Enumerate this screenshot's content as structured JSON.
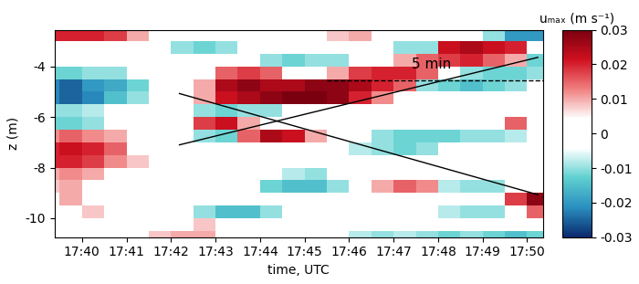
{
  "chart_data": {
    "type": "heatmap",
    "x_label": "time, UTC",
    "y_label": "z (m)",
    "xlim": [
      39.38,
      50.36
    ],
    "ylim": [
      -10.75,
      -2.55
    ],
    "xticks": [
      {
        "value": 40,
        "label": "17:40"
      },
      {
        "value": 41,
        "label": "17:41"
      },
      {
        "value": 42,
        "label": "17:42"
      },
      {
        "value": 43,
        "label": "17:43"
      },
      {
        "value": 44,
        "label": "17:44"
      },
      {
        "value": 45,
        "label": "17:45"
      },
      {
        "value": 46,
        "label": "17:46"
      },
      {
        "value": 47,
        "label": "17:47"
      },
      {
        "value": 48,
        "label": "17:48"
      },
      {
        "value": 49,
        "label": "17:49"
      },
      {
        "value": 50,
        "label": "17:50"
      }
    ],
    "yticks": [
      -10,
      -8,
      -6,
      -4
    ],
    "x_edges": [
      39.0,
      39.5,
      40.0,
      40.5,
      41.0,
      41.5,
      42.0,
      42.5,
      43.0,
      43.5,
      44.0,
      44.5,
      45.0,
      45.5,
      46.0,
      46.5,
      47.0,
      47.5,
      48.0,
      48.5,
      49.0,
      49.5,
      50.0,
      50.5
    ],
    "y_edges": [
      -11.0,
      -10.5,
      -10.0,
      -9.5,
      -9.0,
      -8.5,
      -8.0,
      -7.5,
      -7.0,
      -6.5,
      -6.0,
      -5.5,
      -5.0,
      -4.5,
      -4.0,
      -3.5,
      -3.0,
      -2.5
    ],
    "cells": [
      [
        0,
        0,
        0,
        0,
        0,
        0.008,
        0.01,
        0.01,
        0,
        0,
        0,
        0,
        0,
        0,
        -0.008,
        -0.01,
        -0.008,
        -0.01,
        -0.012,
        -0.01,
        -0.012,
        -0.015,
        -0.012
      ],
      [
        0,
        0,
        0,
        0,
        0,
        0,
        0,
        0.008,
        0,
        0,
        0,
        0,
        0,
        0,
        0,
        0,
        0,
        0,
        0,
        0,
        0,
        0,
        0
      ],
      [
        0,
        0,
        0.008,
        0,
        0,
        0,
        0,
        -0.01,
        -0.015,
        -0.015,
        -0.01,
        0,
        0,
        0,
        0,
        0,
        0,
        0,
        -0.008,
        -0.01,
        -0.01,
        0,
        0.015
      ],
      [
        0,
        0.01,
        0,
        0,
        0,
        0,
        0,
        0,
        0,
        0,
        0,
        0,
        0,
        0,
        0,
        0,
        0,
        0,
        0,
        0,
        0,
        0.018,
        0.028
      ],
      [
        0.008,
        0.01,
        0,
        0,
        0,
        0,
        0,
        0,
        0,
        0,
        -0.012,
        -0.015,
        -0.015,
        -0.01,
        0,
        0.01,
        0.015,
        0.012,
        -0.008,
        -0.01,
        -0.01,
        0,
        0
      ],
      [
        0.01,
        0.012,
        0.01,
        0,
        0,
        0,
        0,
        0,
        0,
        0,
        0,
        -0.008,
        -0.01,
        0,
        0,
        0,
        0,
        0,
        0,
        0,
        0,
        0,
        0
      ],
      [
        0.02,
        0.02,
        0.018,
        0.012,
        0.008,
        0,
        0,
        0,
        0,
        0,
        0,
        0,
        0,
        0,
        0,
        0,
        0,
        0,
        0,
        0,
        0,
        0,
        0
      ],
      [
        0.02,
        0.022,
        0.02,
        0.015,
        0,
        0,
        0,
        0,
        0,
        0,
        0,
        0,
        0,
        0,
        -0.008,
        -0.01,
        -0.012,
        -0.01,
        0,
        0,
        0,
        0,
        0
      ],
      [
        0.012,
        0.015,
        0.012,
        0.01,
        0,
        0,
        0,
        -0.01,
        -0.012,
        0.015,
        0.025,
        0.022,
        0.01,
        0,
        0,
        -0.01,
        -0.012,
        -0.012,
        -0.012,
        -0.01,
        -0.01,
        -0.008,
        0
      ],
      [
        -0.012,
        -0.012,
        -0.01,
        0,
        0,
        0,
        0,
        0.018,
        0.022,
        0.01,
        0,
        0,
        0,
        0,
        0,
        0,
        0,
        0,
        0,
        0,
        0,
        0.015,
        0
      ],
      [
        -0.01,
        -0.01,
        -0.008,
        0,
        0,
        0,
        0,
        -0.01,
        -0.012,
        -0.01,
        -0.01,
        0,
        0,
        0,
        0,
        0,
        0,
        0,
        0,
        0,
        0,
        0,
        0
      ],
      [
        -0.022,
        -0.025,
        -0.022,
        -0.015,
        -0.01,
        0,
        0,
        0.01,
        0.022,
        0.025,
        0.028,
        0.03,
        0.03,
        0.028,
        0.02,
        0.012,
        0,
        0,
        0,
        0,
        0,
        0,
        0
      ],
      [
        -0.022,
        -0.025,
        -0.02,
        -0.018,
        -0.012,
        0,
        0,
        0.01,
        0.025,
        0.028,
        0.025,
        0.025,
        0.028,
        0.028,
        0.025,
        0.02,
        0.015,
        -0.01,
        -0.012,
        -0.015,
        -0.012,
        -0.01,
        0
      ],
      [
        -0.012,
        -0.012,
        -0.01,
        -0.01,
        0,
        0,
        0,
        0,
        0.015,
        0.018,
        0.015,
        0,
        0,
        0.01,
        0.018,
        0.02,
        0.02,
        0.015,
        0,
        -0.01,
        -0.012,
        -0.012,
        -0.01
      ],
      [
        0,
        0,
        0,
        0,
        0,
        0,
        0,
        0,
        0,
        0,
        -0.01,
        -0.012,
        -0.01,
        -0.01,
        0,
        0,
        0.01,
        0.015,
        0.018,
        0.02,
        0.015,
        0.01,
        -0.012
      ],
      [
        0,
        0,
        0,
        0,
        0,
        0,
        -0.01,
        -0.012,
        -0.01,
        0,
        0,
        0,
        0,
        0,
        0,
        0,
        -0.01,
        -0.01,
        0.022,
        0.025,
        0.022,
        0.02,
        0
      ],
      [
        0.02,
        0.02,
        0.02,
        0.018,
        0.01,
        0,
        0,
        0,
        0,
        0,
        0,
        0,
        0,
        0.008,
        0.01,
        0,
        0,
        0,
        0,
        0,
        -0.01,
        -0.02,
        -0.02
      ]
    ],
    "colorbar": {
      "title": "uₘₐₓ (m s⁻¹)",
      "range": [
        -0.03,
        0.03
      ],
      "ticks": [
        -0.03,
        -0.02,
        -0.01,
        0,
        0.01,
        0.02,
        0.03
      ]
    },
    "lines": [
      {
        "x": [
          42.19,
          50.24
        ],
        "y": [
          -5.07,
          -9.07
        ],
        "line_style": "solid"
      },
      {
        "x": [
          42.19,
          50.24
        ],
        "y": [
          -7.1,
          -3.64
        ],
        "line_style": "solid"
      },
      {
        "x": [
          45.5,
          50.36
        ],
        "y": [
          -4.54,
          -4.54
        ],
        "line_style": "dashed"
      }
    ],
    "annotations": [
      {
        "text": "5 min",
        "x": 47.85,
        "y": -3.9
      }
    ]
  }
}
